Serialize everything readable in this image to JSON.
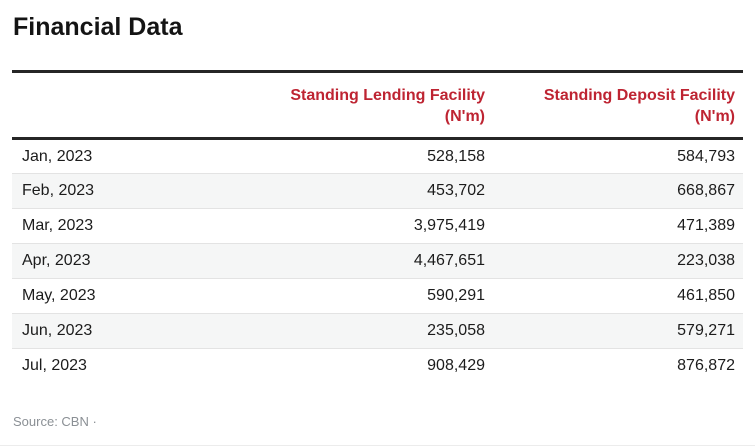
{
  "page": {
    "title": "Financial Data"
  },
  "table": {
    "columns": [
      {
        "label": "Standing Lending Facility",
        "unit": "(N'm)"
      },
      {
        "label": "Standing Deposit Facility",
        "unit": "(N'm)"
      }
    ],
    "rows": [
      {
        "month": "Jan, 2023",
        "lending": "528,158",
        "deposit": "584,793"
      },
      {
        "month": "Feb, 2023",
        "lending": "453,702",
        "deposit": "668,867"
      },
      {
        "month": "Mar, 2023",
        "lending": "3,975,419",
        "deposit": "471,389"
      },
      {
        "month": "Apr, 2023",
        "lending": "4,467,651",
        "deposit": "223,038"
      },
      {
        "month": "May, 2023",
        "lending": "590,291",
        "deposit": "461,850"
      },
      {
        "month": "Jun, 2023",
        "lending": "235,058",
        "deposit": "579,271"
      },
      {
        "month": "Jul, 2023",
        "lending": "908,429",
        "deposit": "876,872"
      }
    ]
  },
  "footer": {
    "source": "Source: CBN ·"
  },
  "colors": {
    "header_red": "#be2432",
    "rule_dark": "#262626",
    "alt_row_bg": "#f5f6f6",
    "row_separator": "#e3e3e3",
    "body_text": "#1c1c1c",
    "source_gray": "#8b9095"
  },
  "chart_data": {
    "type": "table",
    "title": "Financial Data",
    "categories": [
      "Jan, 2023",
      "Feb, 2023",
      "Mar, 2023",
      "Apr, 2023",
      "May, 2023",
      "Jun, 2023",
      "Jul, 2023"
    ],
    "series": [
      {
        "name": "Standing Lending Facility (N'm)",
        "values": [
          528158,
          453702,
          3975419,
          4467651,
          590291,
          235058,
          908429
        ]
      },
      {
        "name": "Standing Deposit Facility (N'm)",
        "values": [
          584793,
          668867,
          471389,
          223038,
          461850,
          579271,
          876872
        ]
      }
    ],
    "source": "CBN",
    "layout": {
      "zebra_striping": true,
      "value_alignment": "right",
      "header_color": "#be2432"
    }
  }
}
